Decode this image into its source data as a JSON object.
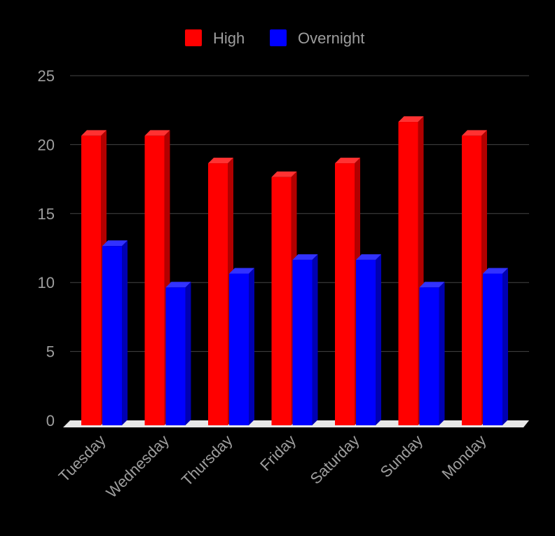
{
  "chart_data": {
    "type": "bar",
    "style": "3d-clustered",
    "categories": [
      "Tuesday",
      "Wednesday",
      "Thursday",
      "Friday",
      "Saturday",
      "Sunday",
      "Monday"
    ],
    "series": [
      {
        "name": "High",
        "color": "#ff0000",
        "values": [
          21,
          21,
          19,
          18,
          19,
          22,
          21
        ]
      },
      {
        "name": "Overnight",
        "color": "#0000ff",
        "values": [
          13,
          10,
          11,
          12,
          12,
          10,
          11
        ]
      }
    ],
    "yticks": [
      "0",
      "5",
      "10",
      "15",
      "20",
      "25"
    ],
    "ylim": [
      0,
      25
    ],
    "grid": true,
    "legend": "top",
    "background": "#000000"
  }
}
